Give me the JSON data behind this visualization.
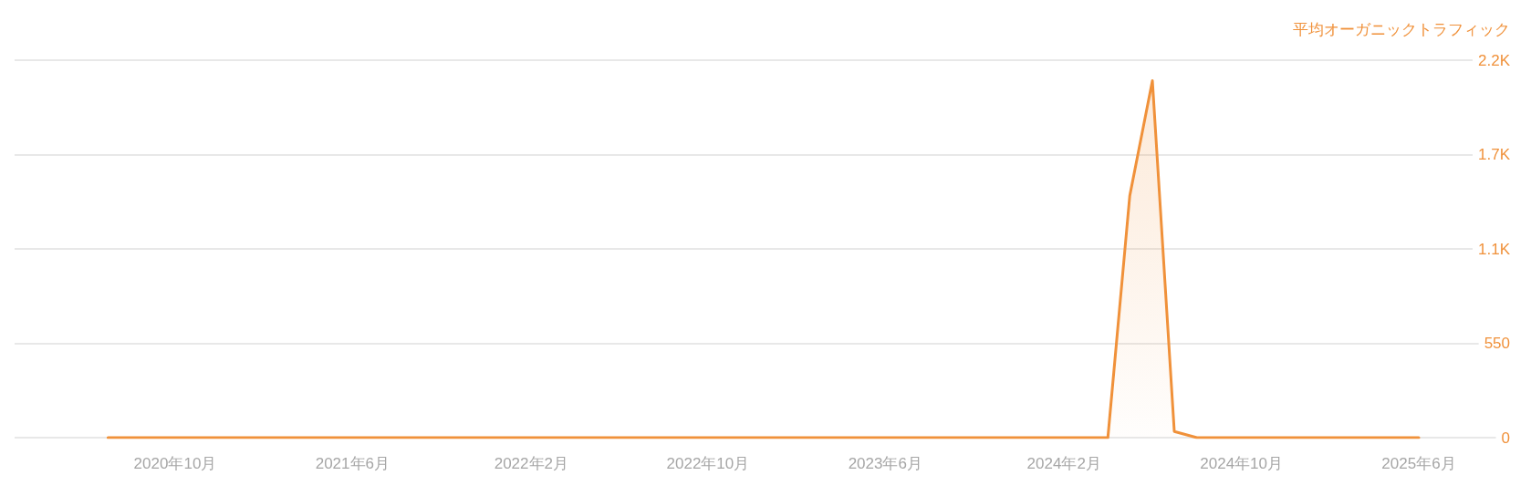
{
  "chart_data": {
    "type": "area",
    "ylabel": "平均オーガニックトラフィック",
    "x": [
      "2020-07",
      "2020-08",
      "2020-09",
      "2020-10",
      "2020-11",
      "2020-12",
      "2021-01",
      "2021-02",
      "2021-03",
      "2021-04",
      "2021-05",
      "2021-06",
      "2021-07",
      "2021-08",
      "2021-09",
      "2021-10",
      "2021-11",
      "2021-12",
      "2022-01",
      "2022-02",
      "2022-03",
      "2022-04",
      "2022-05",
      "2022-06",
      "2022-07",
      "2022-08",
      "2022-09",
      "2022-10",
      "2022-11",
      "2022-12",
      "2023-01",
      "2023-02",
      "2023-03",
      "2023-04",
      "2023-05",
      "2023-06",
      "2023-07",
      "2023-08",
      "2023-09",
      "2023-10",
      "2023-11",
      "2023-12",
      "2024-01",
      "2024-02",
      "2024-03",
      "2024-04",
      "2024-05",
      "2024-06",
      "2024-07",
      "2024-08",
      "2024-09",
      "2024-10",
      "2024-11",
      "2024-12",
      "2025-01",
      "2025-02",
      "2025-03",
      "2025-04",
      "2025-05",
      "2025-06"
    ],
    "series": [
      {
        "color": "#f0913a",
        "values": [
          0,
          0,
          0,
          0,
          0,
          0,
          0,
          0,
          0,
          0,
          0,
          0,
          0,
          0,
          0,
          0,
          0,
          0,
          0,
          0,
          0,
          0,
          0,
          0,
          0,
          0,
          0,
          0,
          0,
          0,
          0,
          0,
          0,
          0,
          0,
          0,
          0,
          0,
          0,
          0,
          0,
          0,
          0,
          0,
          0,
          0,
          1410,
          2080,
          36,
          0,
          0,
          0,
          0,
          0,
          0,
          0,
          0,
          0,
          0,
          0
        ]
      }
    ],
    "xlim": [
      "2020-02-24",
      "2025-10-04"
    ],
    "xticks": [
      {
        "value": "2020-10",
        "label": "2020年10月"
      },
      {
        "value": "2021-06",
        "label": "2021年6月"
      },
      {
        "value": "2022-02",
        "label": "2022年2月"
      },
      {
        "value": "2022-10",
        "label": "2022年10月"
      },
      {
        "value": "2023-06",
        "label": "2023年6月"
      },
      {
        "value": "2024-02",
        "label": "2024年2月"
      },
      {
        "value": "2024-10",
        "label": "2024年10月"
      },
      {
        "value": "2025-06",
        "label": "2025年6月"
      }
    ],
    "ylim": [
      0,
      2200
    ],
    "yticks": [
      0,
      550,
      {
        "value": 1100,
        "label": "1.1K"
      },
      {
        "value": 1650,
        "label": "1.7K"
      },
      {
        "value": 2200,
        "label": "2.2K"
      }
    ],
    "grid": "y"
  }
}
